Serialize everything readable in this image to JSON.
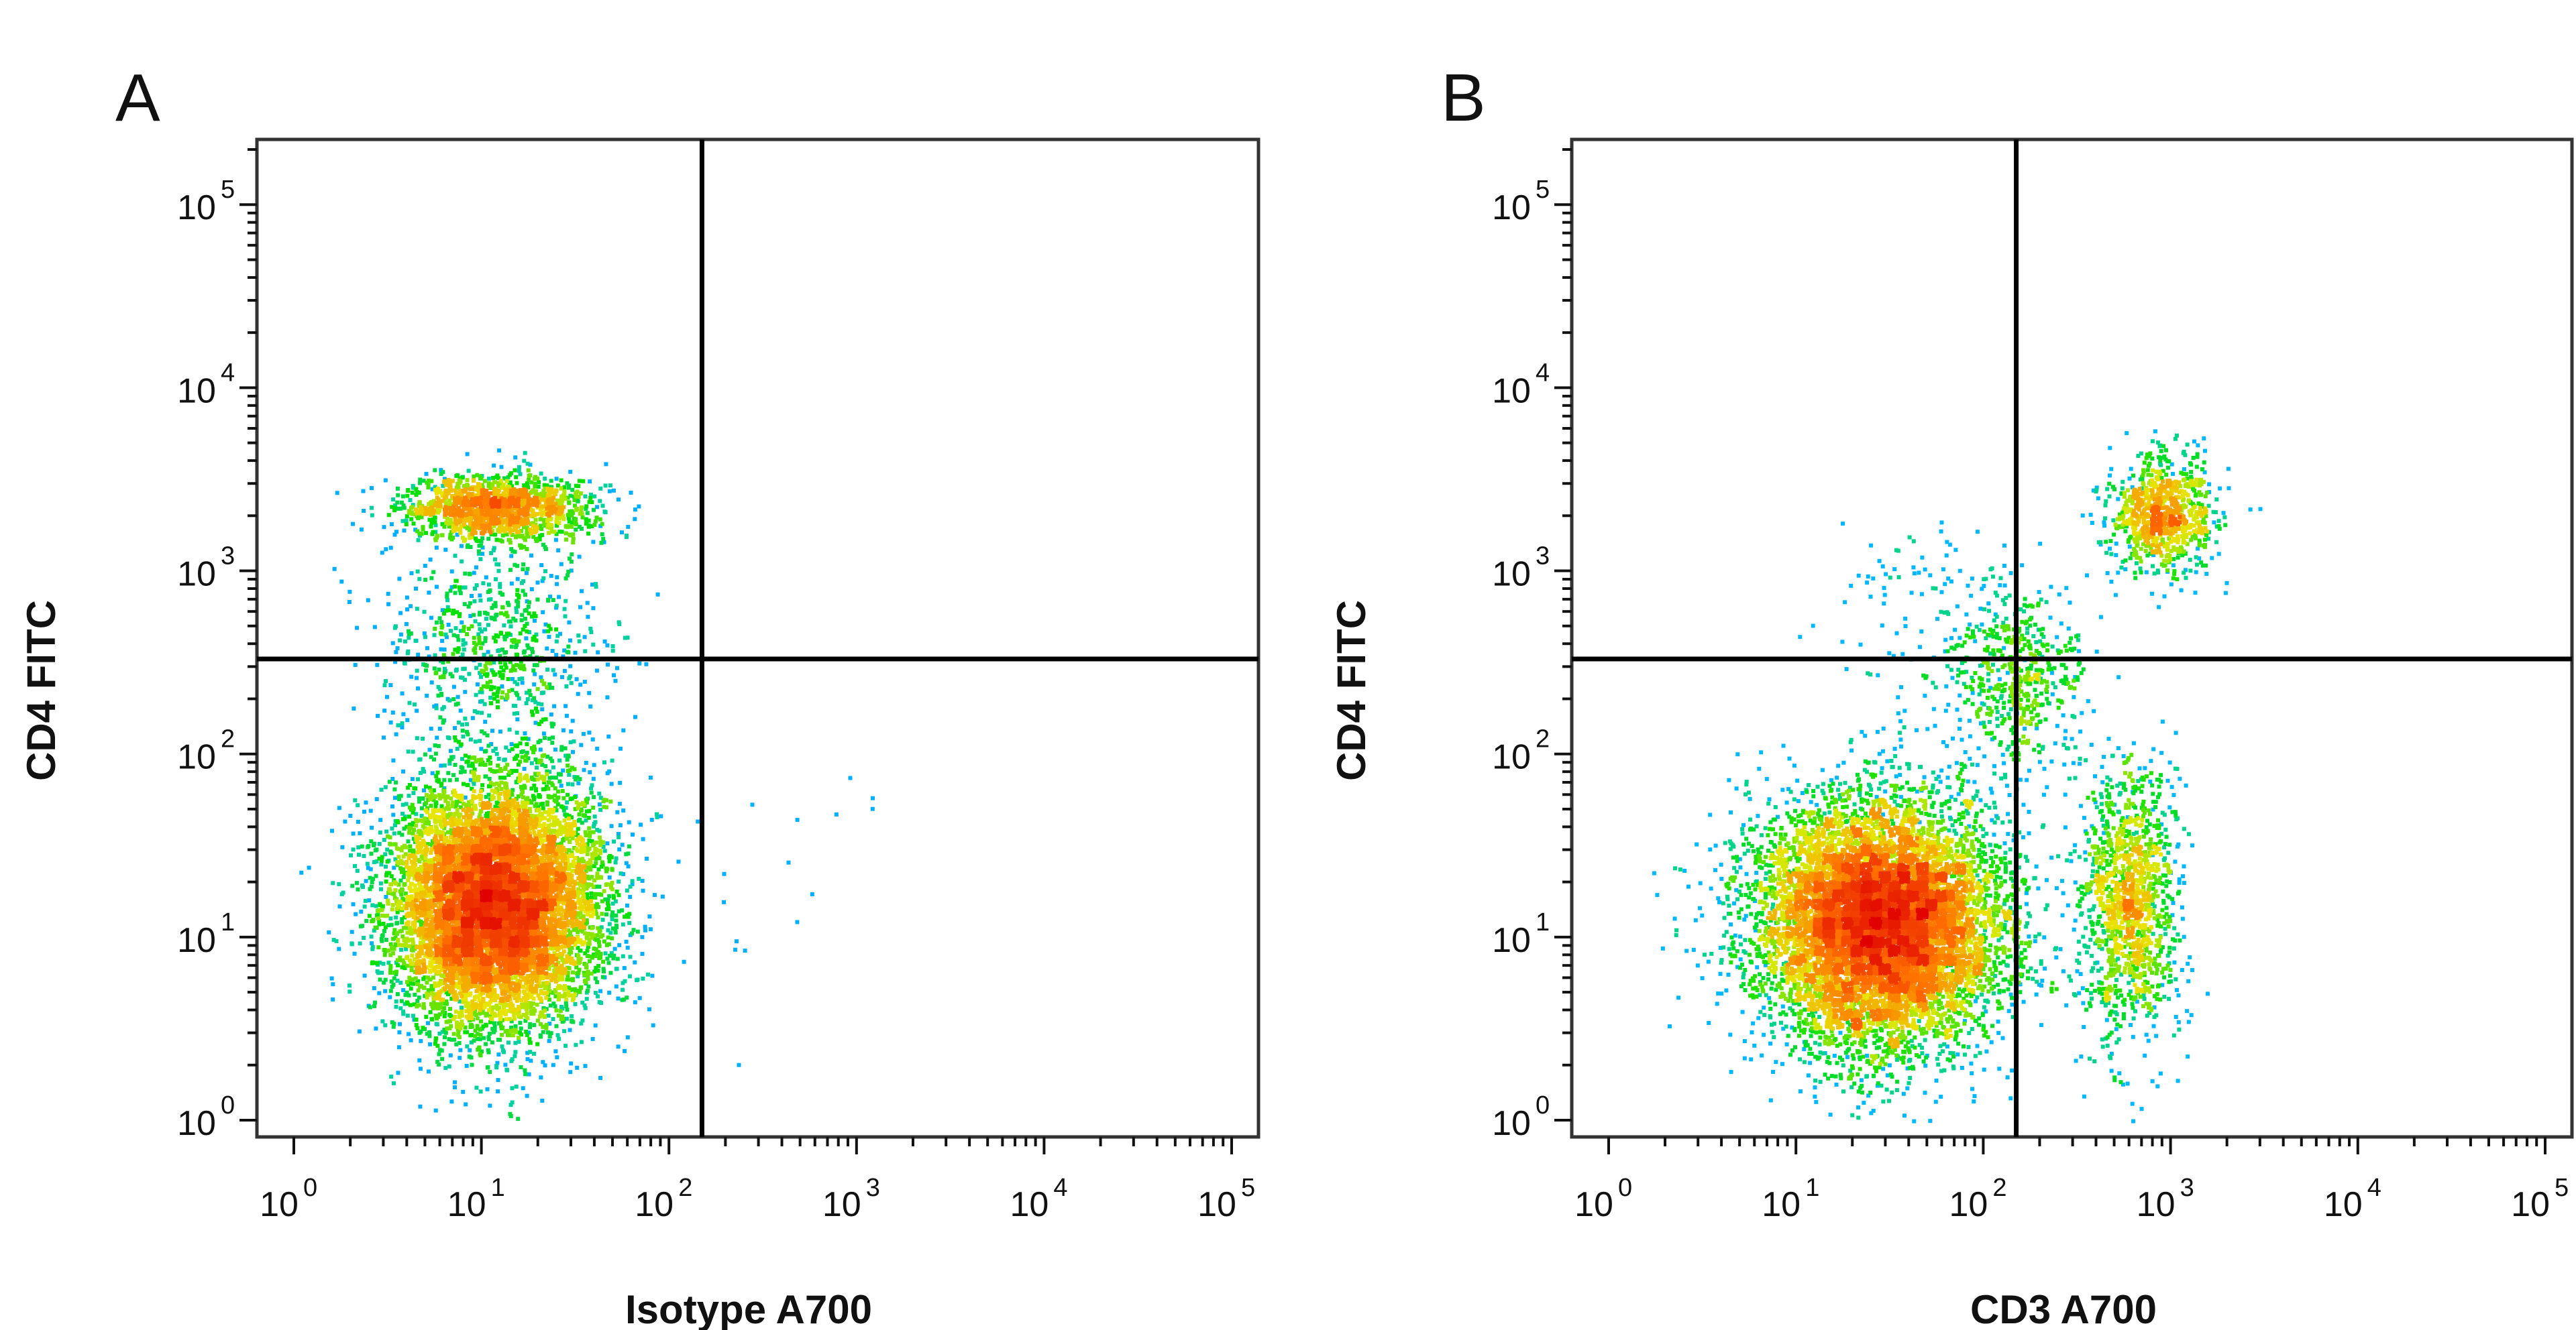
{
  "chart_data": [
    {
      "type": "scatter",
      "panel_label": "A",
      "xlabel": "Isotype A700",
      "ylabel": "CD4 FITC",
      "x_scale": "log",
      "y_scale": "log",
      "xlim": [
        1,
        100000
      ],
      "ylim": [
        1,
        200000
      ],
      "x_ticks": [
        1,
        10,
        100,
        1000,
        10000,
        100000
      ],
      "y_ticks": [
        1,
        10,
        100,
        1000,
        10000,
        100000
      ],
      "tick_base": "10",
      "tick_exponents": [
        "0",
        "1",
        "2",
        "3",
        "4",
        "5"
      ],
      "quadrant_gate": {
        "x": 150,
        "y": 330
      },
      "color_map": [
        "#0000ff",
        "#00c8ff",
        "#00e000",
        "#e8e800",
        "#ff7000",
        "#e00000"
      ],
      "populations": [
        {
          "center_x": 12,
          "center_y": 15,
          "spread_x_decades": 0.28,
          "spread_y_decades": 0.34,
          "count": 9000
        },
        {
          "center_x": 12,
          "center_y": 2200,
          "spread_x_decades": 0.26,
          "spread_y_decades": 0.09,
          "count": 1400
        },
        {
          "center_x": 12,
          "center_y": 400,
          "spread_x_decades": 0.3,
          "spread_y_decades": 0.3,
          "count": 700
        },
        {
          "center_x": 400,
          "center_y": 30,
          "spread_x_decades": 0.35,
          "spread_y_decades": 0.45,
          "count": 20
        }
      ],
      "grid": false,
      "legend": "none"
    },
    {
      "type": "scatter",
      "panel_label": "B",
      "xlabel": "CD3 A700",
      "ylabel": "CD4 FITC",
      "x_scale": "log",
      "y_scale": "log",
      "xlim": [
        1,
        100000
      ],
      "ylim": [
        1,
        200000
      ],
      "x_ticks": [
        1,
        10,
        100,
        1000,
        10000,
        100000
      ],
      "y_ticks": [
        1,
        10,
        100,
        1000,
        10000,
        100000
      ],
      "tick_base": "10",
      "tick_exponents": [
        "0",
        "1",
        "2",
        "3",
        "4",
        "5"
      ],
      "quadrant_gate": {
        "x": 150,
        "y": 330
      },
      "color_map": [
        "#0000ff",
        "#00c8ff",
        "#00e000",
        "#e8e800",
        "#ff7000",
        "#e00000"
      ],
      "populations": [
        {
          "center_x": 28,
          "center_y": 12,
          "spread_x_decades": 0.32,
          "spread_y_decades": 0.34,
          "count": 9000
        },
        {
          "center_x": 900,
          "center_y": 2000,
          "spread_x_decades": 0.14,
          "spread_y_decades": 0.16,
          "count": 900
        },
        {
          "center_x": 600,
          "center_y": 15,
          "spread_x_decades": 0.13,
          "spread_y_decades": 0.38,
          "count": 1300
        },
        {
          "center_x": 150,
          "center_y": 250,
          "spread_x_decades": 0.18,
          "spread_y_decades": 0.25,
          "count": 500
        },
        {
          "center_x": 60,
          "center_y": 600,
          "spread_x_decades": 0.3,
          "spread_y_decades": 0.25,
          "count": 120
        }
      ],
      "grid": false,
      "legend": "none"
    }
  ]
}
